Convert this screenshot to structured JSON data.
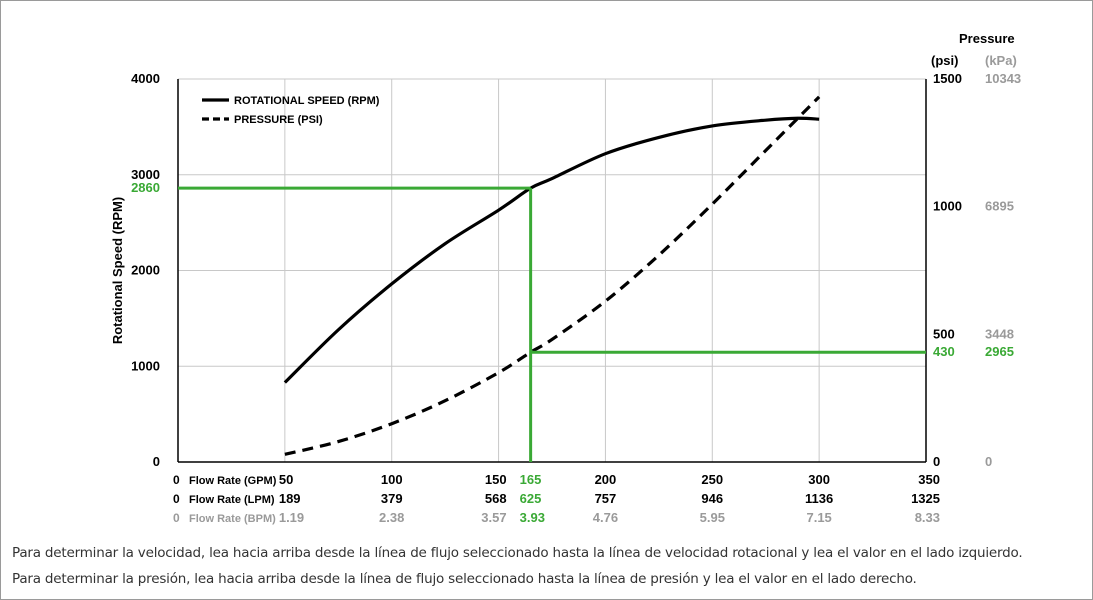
{
  "colors": {
    "curve": "#000000",
    "grid": "#c8c8c8",
    "highlight": "#3aa935",
    "label": "#000000",
    "secondary": "#9a9a9a",
    "border": "#9a9a9a"
  },
  "chart_data": {
    "type": "line",
    "ylabel": "Rotational Speed (RPM)",
    "y_left": {
      "lim": [
        0,
        4000
      ],
      "ticks": [
        0,
        1000,
        2000,
        3000,
        4000
      ]
    },
    "y_right": {
      "title": "Pressure",
      "unit_psi": "(psi)",
      "unit_kpa": "(kPa)",
      "lim": [
        0,
        1500
      ],
      "ticks": [
        {
          "psi": "0",
          "kpa": "0",
          "value": 0
        },
        {
          "psi": "500",
          "kpa": "3448",
          "value": 500
        },
        {
          "psi": "1000",
          "kpa": "6895",
          "value": 1000
        },
        {
          "psi": "1500",
          "kpa": "10343",
          "value": 1500
        }
      ]
    },
    "x_axis": {
      "lim": [
        0,
        350
      ],
      "gpm_values": [
        0,
        50,
        100,
        150,
        200,
        250,
        300,
        350
      ],
      "rows": [
        {
          "label": "Flow Rate (GPM)",
          "zero": "0",
          "ticks": [
            "50",
            "100",
            "150",
            "200",
            "250",
            "300",
            "350"
          ],
          "color": "label"
        },
        {
          "label": "Flow Rate (LPM)",
          "zero": "0",
          "ticks": [
            "189",
            "379",
            "568",
            "757",
            "946",
            "1136",
            "1325"
          ],
          "color": "label"
        },
        {
          "label": "Flow Rate (BPM)",
          "zero": "0",
          "ticks": [
            "1.19",
            "2.38",
            "3.57",
            "4.76",
            "5.95",
            "7.15",
            "8.33"
          ],
          "color": "secondary"
        }
      ]
    },
    "legend": {
      "position": "top-left",
      "items": [
        {
          "label": "ROTATIONAL SPEED (RPM)",
          "style": "solid"
        },
        {
          "label": "PRESSURE (PSI)",
          "style": "dashed"
        }
      ]
    },
    "series": [
      {
        "name": "ROTATIONAL SPEED (RPM)",
        "axis": "left",
        "style": "solid",
        "x": [
          50,
          75,
          100,
          125,
          150,
          165,
          175,
          200,
          225,
          250,
          275,
          290,
          300
        ],
        "y": [
          830,
          1380,
          1860,
          2280,
          2630,
          2860,
          2960,
          3220,
          3390,
          3510,
          3570,
          3590,
          3580
        ]
      },
      {
        "name": "PRESSURE (PSI)",
        "axis": "right",
        "style": "dashed",
        "x": [
          50,
          75,
          100,
          125,
          150,
          165,
          175,
          200,
          225,
          250,
          275,
          300
        ],
        "y": [
          30,
          80,
          150,
          240,
          350,
          430,
          480,
          630,
          810,
          1010,
          1220,
          1430
        ]
      }
    ],
    "highlight": {
      "gpm": 165,
      "gpm_label": "165",
      "lpm_label": "625",
      "bpm_label": "3.93",
      "rpm": 2860,
      "rpm_label": "2860",
      "psi": 430,
      "psi_label": "430",
      "kpa_label": "2965"
    },
    "grid": true
  },
  "notes": [
    "Para determinar la velocidad, lea hacia arriba desde la línea de flujo seleccionado hasta la línea de velocidad rotacional y lea el valor en el lado izquierdo.",
    "Para determinar la presión, lea hacia arriba desde la línea de flujo seleccionado hasta la línea de presión y lea el valor en el lado derecho."
  ]
}
